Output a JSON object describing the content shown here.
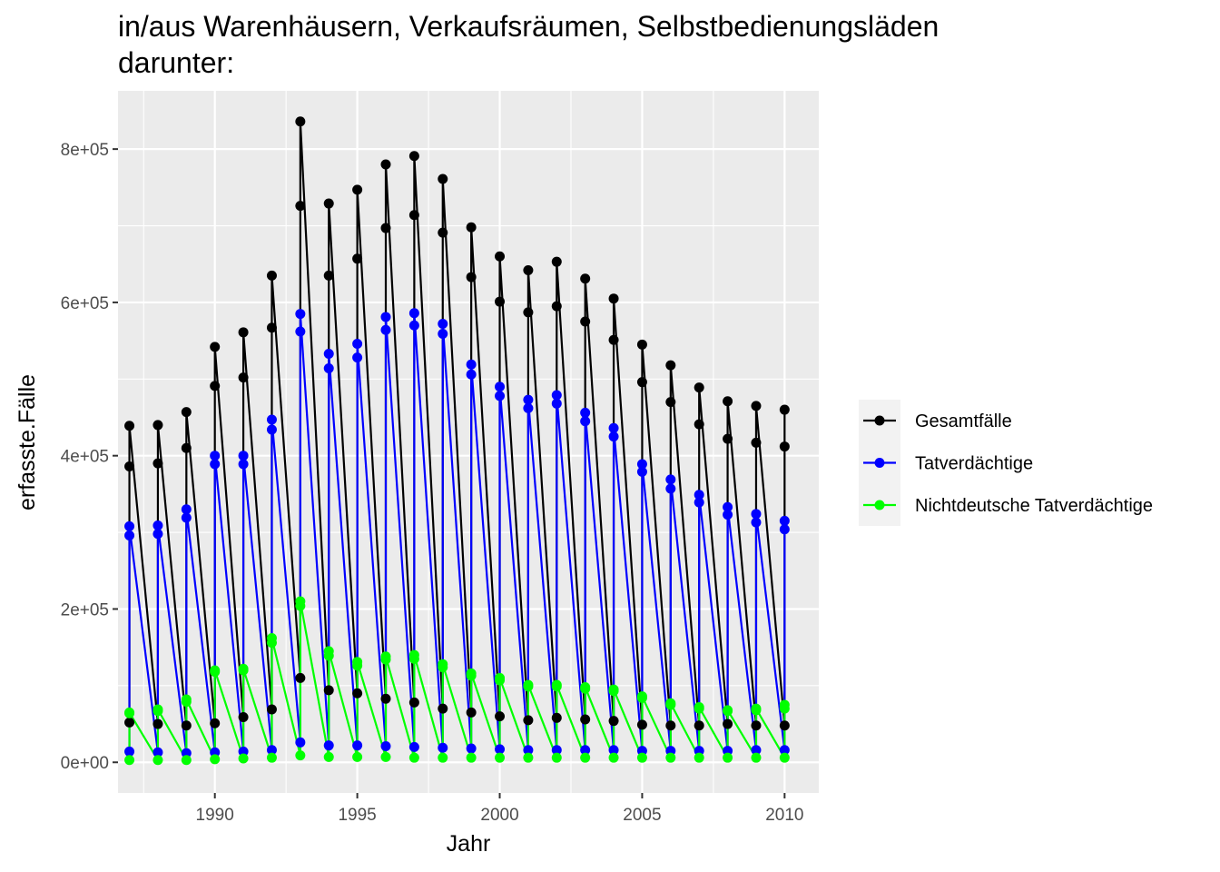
{
  "chart_data": {
    "type": "line",
    "title_lines": [
      "in/aus Warenhäusern, Verkaufsräumen, Selbstbedienungsläden",
      "darunter:"
    ],
    "xlabel": "Jahr",
    "ylabel": "erfasste.Fälle",
    "xlim": [
      1986.6,
      2011.2
    ],
    "ylim": [
      -40000,
      876000
    ],
    "x_ticks": [
      1990,
      1995,
      2000,
      2005,
      2010
    ],
    "x_tick_labels": [
      "1990",
      "1995",
      "2000",
      "2005",
      "2010"
    ],
    "y_ticks": [
      0,
      200000,
      400000,
      600000,
      800000
    ],
    "y_tick_labels": [
      "0e+00",
      "2e+05",
      "4e+05",
      "6e+05",
      "8e+05"
    ],
    "grid": true,
    "legend_position": "right",
    "x": [
      1987,
      1988,
      1989,
      1990,
      1991,
      1992,
      1993,
      1994,
      1995,
      1996,
      1997,
      1998,
      1999,
      2000,
      2001,
      2002,
      2003,
      2004,
      2005,
      2006,
      2007,
      2008,
      2009,
      2010
    ],
    "series": [
      {
        "name": "Gesamtfälle",
        "color": "#000000",
        "values": [
          [
            52000,
            386000,
            439000
          ],
          [
            50000,
            390000,
            440000
          ],
          [
            48000,
            410000,
            457000
          ],
          [
            51000,
            491000,
            542000
          ],
          [
            59000,
            502000,
            561000
          ],
          [
            69000,
            567000,
            635000
          ],
          [
            110000,
            726000,
            836000
          ],
          [
            94000,
            635000,
            729000
          ],
          [
            90000,
            657000,
            747000
          ],
          [
            83000,
            697000,
            780000
          ],
          [
            78000,
            714000,
            791000
          ],
          [
            70000,
            691000,
            761000
          ],
          [
            65000,
            633000,
            698000
          ],
          [
            60000,
            601000,
            660000
          ],
          [
            55000,
            587000,
            642000
          ],
          [
            58000,
            595000,
            653000
          ],
          [
            56000,
            575000,
            631000
          ],
          [
            54000,
            551000,
            605000
          ],
          [
            49000,
            496000,
            545000
          ],
          [
            48000,
            470000,
            518000
          ],
          [
            48000,
            441000,
            489000
          ],
          [
            50000,
            422000,
            471000
          ],
          [
            48000,
            417000,
            465000
          ],
          [
            48000,
            412000,
            460000
          ]
        ]
      },
      {
        "name": "Tatverdächtige",
        "color": "#0000ff",
        "values": [
          [
            14000,
            296000,
            308000
          ],
          [
            13000,
            298000,
            309000
          ],
          [
            12000,
            319000,
            330000
          ],
          [
            13000,
            389000,
            400000
          ],
          [
            14000,
            389000,
            400000
          ],
          [
            16000,
            434000,
            447000
          ],
          [
            26000,
            562000,
            585000
          ],
          [
            22000,
            514000,
            533000
          ],
          [
            22000,
            528000,
            546000
          ],
          [
            21000,
            564000,
            581000
          ],
          [
            20000,
            570000,
            586000
          ],
          [
            19000,
            559000,
            572000
          ],
          [
            18000,
            506000,
            519000
          ],
          [
            17000,
            478000,
            490000
          ],
          [
            16000,
            462000,
            473000
          ],
          [
            16000,
            468000,
            479000
          ],
          [
            16000,
            445000,
            456000
          ],
          [
            16000,
            425000,
            436000
          ],
          [
            15000,
            379000,
            389000
          ],
          [
            15000,
            357000,
            369000
          ],
          [
            15000,
            339000,
            349000
          ],
          [
            15000,
            323000,
            333000
          ],
          [
            16000,
            313000,
            324000
          ],
          [
            16000,
            304000,
            315000
          ]
        ]
      },
      {
        "name": "Nichtdeutsche Tatverdächtige",
        "color": "#00ff00",
        "values": [
          [
            3000,
            64000,
            65000
          ],
          [
            3000,
            67000,
            69000
          ],
          [
            3000,
            79000,
            82000
          ],
          [
            4000,
            118000,
            120000
          ],
          [
            5000,
            120000,
            122000
          ],
          [
            6000,
            156000,
            162000
          ],
          [
            9000,
            204000,
            210000
          ],
          [
            7000,
            139000,
            145000
          ],
          [
            7000,
            126000,
            131000
          ],
          [
            7000,
            134000,
            138000
          ],
          [
            6000,
            135000,
            140000
          ],
          [
            6000,
            124000,
            128000
          ],
          [
            6000,
            113000,
            116000
          ],
          [
            6000,
            107000,
            110000
          ],
          [
            6000,
            99000,
            101000
          ],
          [
            6000,
            99000,
            101000
          ],
          [
            6000,
            96000,
            98000
          ],
          [
            6000,
            93000,
            95000
          ],
          [
            6000,
            84000,
            86000
          ],
          [
            6000,
            75000,
            77000
          ],
          [
            6000,
            70000,
            72000
          ],
          [
            6000,
            67000,
            68000
          ],
          [
            6000,
            68000,
            70000
          ],
          [
            6000,
            70000,
            75000
          ]
        ]
      }
    ]
  }
}
